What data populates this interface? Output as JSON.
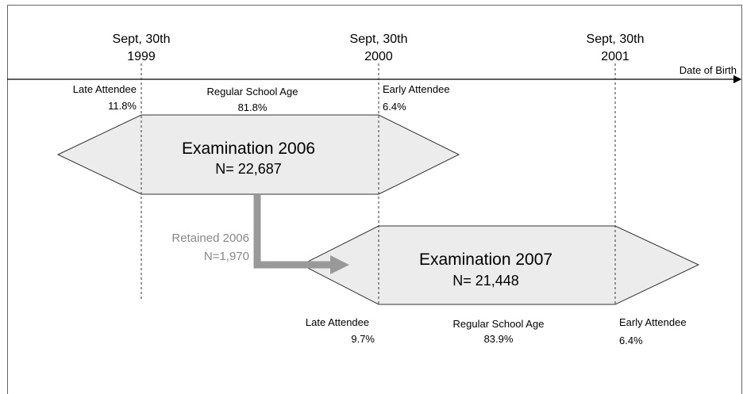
{
  "timeline": {
    "axis_label": "Date of Birth",
    "dates": [
      {
        "label": "Sept, 30th",
        "year": "1999"
      },
      {
        "label": "Sept, 30th",
        "year": "2000"
      },
      {
        "label": "Sept, 30th",
        "year": "2001"
      }
    ]
  },
  "exam_2006": {
    "title": "Examination 2006",
    "n": "N= 22,687",
    "groups": [
      {
        "label": "Late Attendee",
        "share": "11.8%"
      },
      {
        "label": "Regular School Age",
        "share": "81.8%"
      },
      {
        "label": "Early Attendee",
        "share": "6.4%"
      }
    ]
  },
  "retained": {
    "label": "Retained 2006",
    "n": "N=1,970"
  },
  "exam_2007": {
    "title": "Examination 2007",
    "n": "N= 21,448",
    "groups": [
      {
        "label": "Late Attendee",
        "share": "9.7%"
      },
      {
        "label": "Regular School Age",
        "share": "83.9%"
      },
      {
        "label": "Early Attendee",
        "share": "6.4%"
      }
    ]
  }
}
